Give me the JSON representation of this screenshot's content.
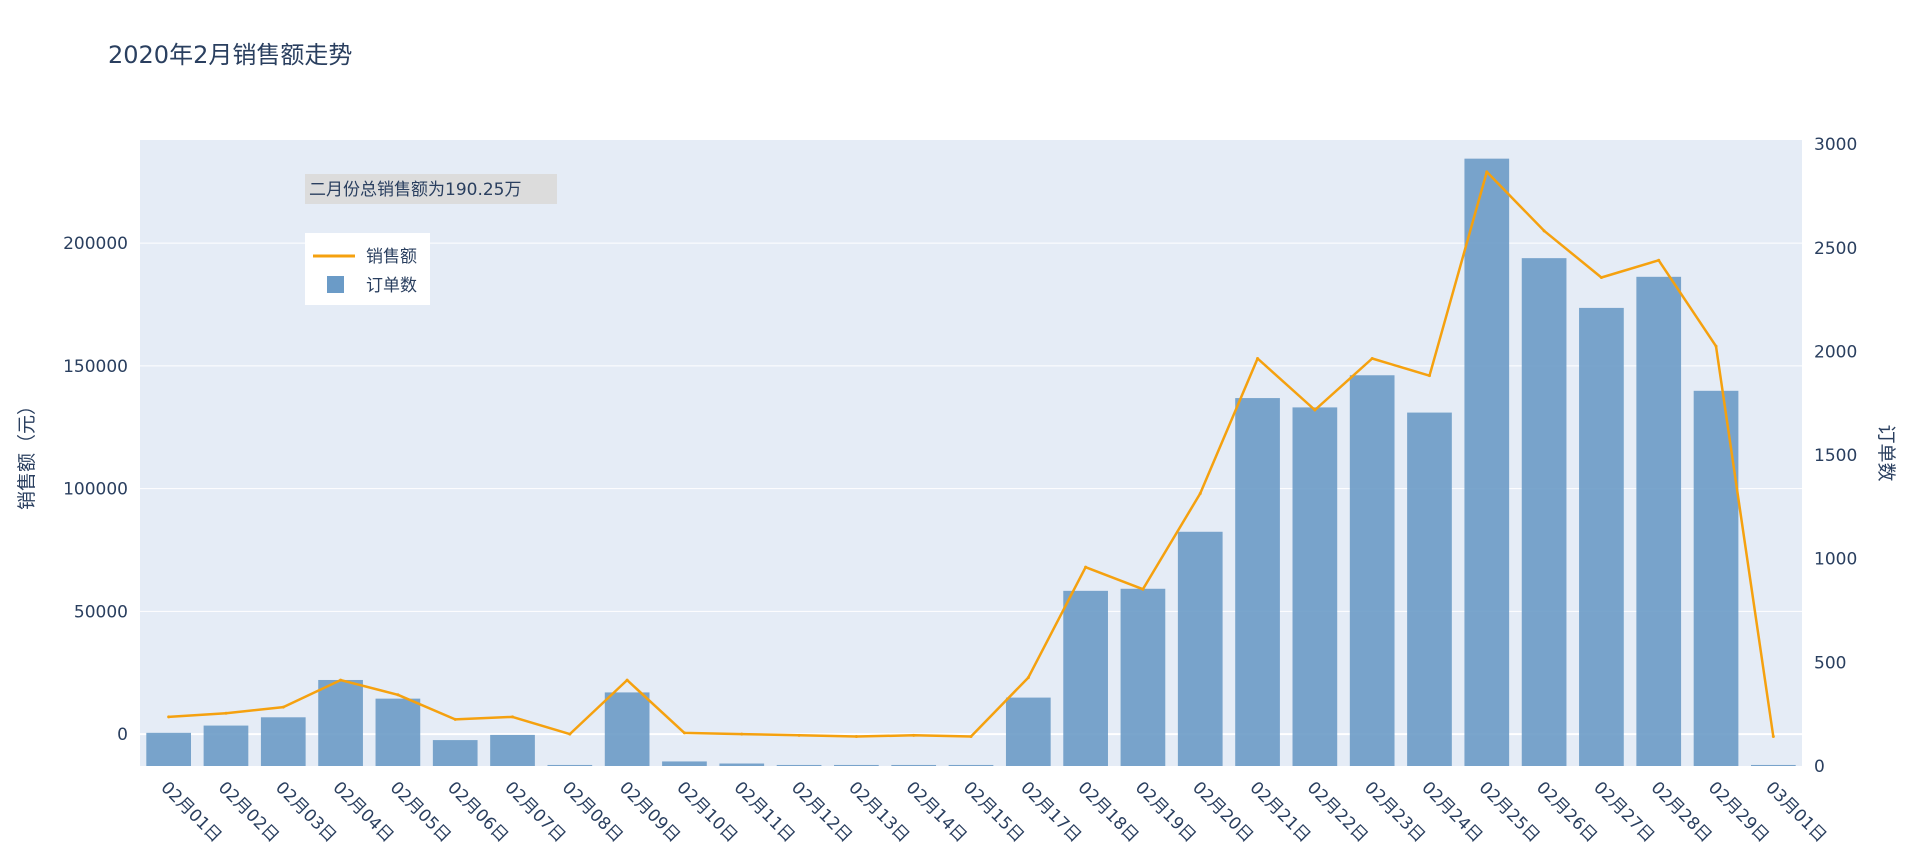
{
  "chart_data": {
    "type": "bar",
    "title": "2020年2月销售额走势",
    "ylabel_left": "销售额（元）",
    "ylabel_right": "订单数",
    "xlabel": "",
    "annotation": "二月份总销售额为190.25万",
    "legend_placement": "top-left",
    "grid": true,
    "categories": [
      "02月01日",
      "02月02日",
      "02月03日",
      "02月04日",
      "02月05日",
      "02月06日",
      "02月07日",
      "02月08日",
      "02月09日",
      "02月10日",
      "02月11日",
      "02月12日",
      "02月13日",
      "02月14日",
      "02月15日",
      "02月17日",
      "02月18日",
      "02月19日",
      "02月20日",
      "02月21日",
      "02月22日",
      "02月23日",
      "02月24日",
      "02月25日",
      "02月26日",
      "02月27日",
      "02月28日",
      "02月29日",
      "03月01日"
    ],
    "y_left": {
      "range": [
        -13000,
        242000
      ],
      "ticks": [
        0,
        50000,
        100000,
        150000,
        200000
      ],
      "tick_labels": [
        "0",
        "50000",
        "100000",
        "150000",
        "200000"
      ]
    },
    "y_right": {
      "range": [
        0,
        3020
      ],
      "ticks": [
        0,
        500,
        1000,
        1500,
        2000,
        2500,
        3000
      ],
      "tick_labels": [
        "0",
        "500",
        "1000",
        "1500",
        "2000",
        "2500",
        "3000"
      ]
    },
    "series": [
      {
        "name": "订单数",
        "kind": "bar",
        "axis": "right",
        "color": "#6b9bc7",
        "values": [
          160,
          195,
          235,
          415,
          325,
          125,
          150,
          5,
          355,
          22,
          12,
          5,
          5,
          5,
          5,
          330,
          845,
          855,
          1130,
          1775,
          1730,
          1885,
          1705,
          2930,
          2450,
          2210,
          2360,
          1810,
          5
        ]
      },
      {
        "name": "销售额",
        "kind": "line",
        "axis": "left",
        "color": "#f5a10f",
        "values": [
          7000,
          8500,
          11000,
          22000,
          16000,
          6000,
          7000,
          0,
          22000,
          500,
          0,
          -500,
          -1000,
          -500,
          -1000,
          23000,
          68000,
          59000,
          98000,
          153000,
          132000,
          153000,
          146000,
          229000,
          205000,
          186000,
          193000,
          158000,
          -1000
        ]
      }
    ]
  }
}
